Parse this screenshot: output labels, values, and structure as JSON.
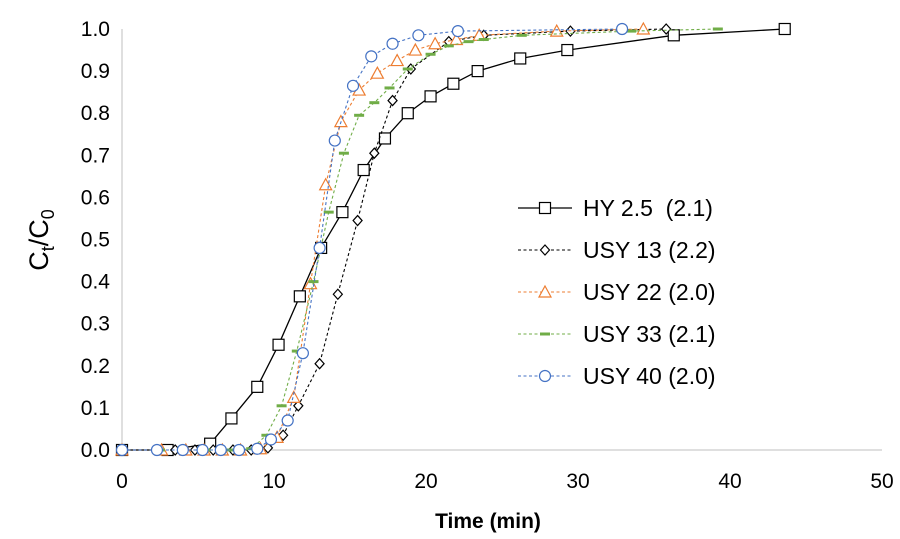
{
  "chart_data": {
    "type": "scatter",
    "title": "",
    "xlabel": "Time (min)",
    "ylabel": {
      "main": "C",
      "main_sub": "t",
      "slash": "/",
      "denom": "C",
      "denom_sub": "0"
    },
    "xlim": [
      0,
      50
    ],
    "ylim": [
      0,
      1.0
    ],
    "xticks": [
      0,
      10,
      20,
      30,
      40,
      50
    ],
    "yticks": [
      0.0,
      0.1,
      0.2,
      0.3,
      0.4,
      0.5,
      0.6,
      0.7,
      0.8,
      0.9,
      1.0
    ],
    "ytick_labels": [
      "0.0",
      "0.1",
      "0.2",
      "0.3",
      "0.4",
      "0.5",
      "0.6",
      "0.7",
      "0.8",
      "0.9",
      "1.0"
    ],
    "grid": false,
    "legend_position": "right",
    "series": [
      {
        "name": "HY 2.5  (2.1)",
        "color": "#000000",
        "marker": "square",
        "line": "solid",
        "x": [
          0,
          3,
          5.8,
          7.2,
          8.9,
          10.3,
          11.7,
          13.1,
          14.5,
          15.9,
          17.3,
          18.8,
          20.3,
          21.8,
          23.4,
          26.2,
          29.3,
          36.3,
          43.6
        ],
        "y": [
          0,
          0,
          0.015,
          0.075,
          0.15,
          0.25,
          0.365,
          0.48,
          0.565,
          0.665,
          0.74,
          0.8,
          0.84,
          0.87,
          0.9,
          0.93,
          0.95,
          0.985,
          1.0
        ]
      },
      {
        "name": "USY 13 (2.2)",
        "color": "#000000",
        "marker": "diamond",
        "line": "dash",
        "x": [
          0,
          2.3,
          3.5,
          4.8,
          6.0,
          7.3,
          8.5,
          9.6,
          10.6,
          11.6,
          13.0,
          14.2,
          15.5,
          16.6,
          17.8,
          19.0,
          21.5,
          23.8,
          29.5,
          35.8
        ],
        "y": [
          0,
          0,
          0,
          0,
          0,
          0,
          0,
          0.005,
          0.035,
          0.105,
          0.205,
          0.37,
          0.545,
          0.705,
          0.83,
          0.905,
          0.97,
          0.985,
          0.995,
          1.0
        ]
      },
      {
        "name": "USY 22 (2.0)",
        "color": "#ED7D31",
        "marker": "triangle",
        "line": "dash",
        "x": [
          0,
          2.6,
          4.2,
          5.4,
          6.6,
          7.8,
          9.1,
          10.2,
          11.3,
          12.4,
          13.4,
          14.4,
          15.6,
          16.8,
          18.1,
          19.3,
          20.6,
          22.0,
          23.5,
          28.6,
          34.3
        ],
        "y": [
          0,
          0,
          0,
          0,
          0,
          0,
          0.003,
          0.03,
          0.125,
          0.395,
          0.63,
          0.78,
          0.855,
          0.895,
          0.925,
          0.95,
          0.965,
          0.975,
          0.985,
          0.995,
          1.0
        ]
      },
      {
        "name": "USY 33 (2.1)",
        "color": "#70AD47",
        "marker": "dash",
        "line": "dash",
        "x": [
          0,
          2.5,
          4.0,
          5.5,
          7.0,
          8.5,
          9.5,
          10.5,
          11.5,
          12.6,
          13.6,
          14.6,
          15.6,
          16.6,
          17.6,
          18.8,
          20.3,
          21.5,
          22.8,
          23.8,
          26.3,
          33.5,
          39.2
        ],
        "y": [
          0,
          0,
          0,
          0,
          0,
          0.003,
          0.035,
          0.105,
          0.235,
          0.4,
          0.565,
          0.705,
          0.795,
          0.825,
          0.86,
          0.905,
          0.94,
          0.96,
          0.97,
          0.975,
          0.985,
          0.995,
          1.0
        ]
      },
      {
        "name": "USY 40 (2.0)",
        "color": "#4472C4",
        "marker": "circle",
        "line": "dash",
        "x": [
          0,
          2.3,
          4.0,
          5.3,
          6.5,
          7.7,
          8.9,
          9.8,
          10.9,
          11.9,
          13.0,
          14.0,
          15.2,
          16.4,
          17.8,
          19.5,
          22.1,
          32.9
        ],
        "y": [
          0,
          0,
          0,
          0,
          0,
          0,
          0.003,
          0.025,
          0.07,
          0.23,
          0.48,
          0.735,
          0.865,
          0.935,
          0.965,
          0.985,
          0.995,
          1.0
        ]
      }
    ]
  }
}
